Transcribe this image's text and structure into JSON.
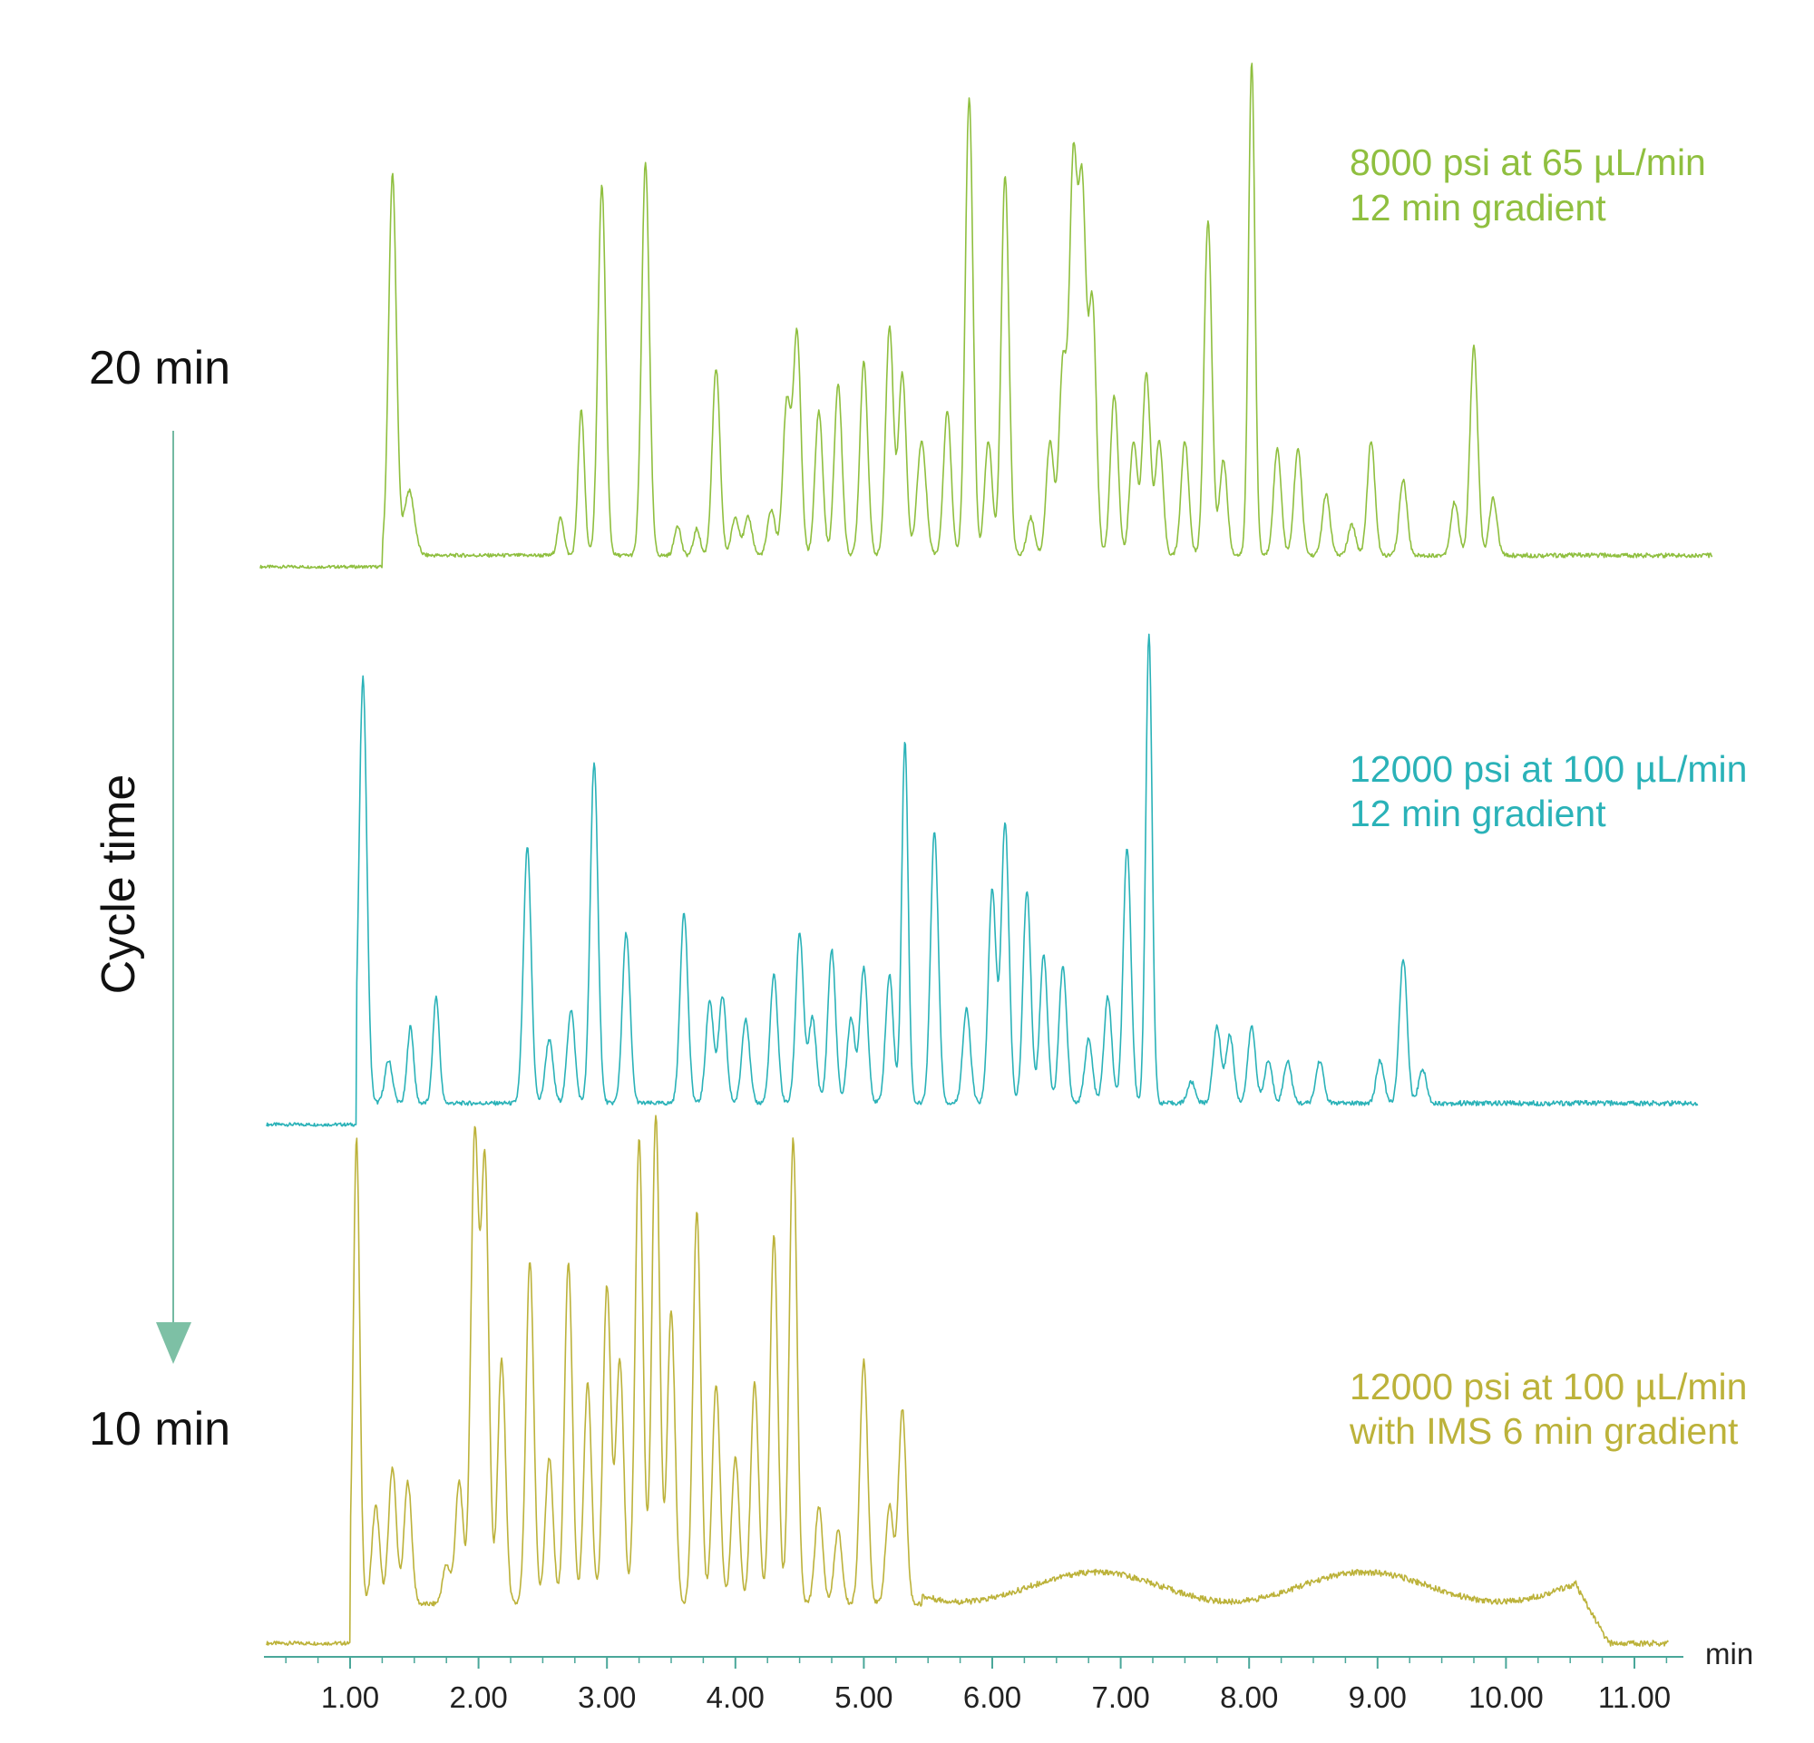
{
  "side_annotations": {
    "top_label": "20 min",
    "bottom_label": "10 min",
    "axis_title": "Cycle time"
  },
  "chart_data": {
    "type": "line",
    "xlabel": "min",
    "ylabel": "",
    "xlim": [
      0.3,
      11.4
    ],
    "x_ticks": [
      "1.00",
      "2.00",
      "3.00",
      "4.00",
      "5.00",
      "6.00",
      "7.00",
      "8.00",
      "9.00",
      "10.00",
      "11.00"
    ],
    "grid": false,
    "traces": [
      {
        "color": "#8fbf3f",
        "label_lines": [
          "8000 psi at 65 µL/min",
          "12 min gradient"
        ],
        "x_range": [
          0.3,
          11.8
        ],
        "onset": 1.25,
        "baseline_after": 0.03,
        "end_peaks": 10.0,
        "peaks": [
          [
            1.33,
            1.0,
            0.03
          ],
          [
            1.46,
            0.17,
            0.04
          ],
          [
            2.64,
            0.1,
            0.025
          ],
          [
            2.8,
            0.38,
            0.025
          ],
          [
            2.96,
            0.97,
            0.03
          ],
          [
            3.3,
            1.03,
            0.03
          ],
          [
            3.55,
            0.08,
            0.025
          ],
          [
            3.7,
            0.07,
            0.025
          ],
          [
            3.85,
            0.49,
            0.03
          ],
          [
            4.0,
            0.1,
            0.03
          ],
          [
            4.1,
            0.1,
            0.03
          ],
          [
            4.28,
            0.12,
            0.03
          ],
          [
            4.4,
            0.4,
            0.03
          ],
          [
            4.48,
            0.58,
            0.03
          ],
          [
            4.65,
            0.38,
            0.03
          ],
          [
            4.8,
            0.45,
            0.03
          ],
          [
            5.0,
            0.51,
            0.03
          ],
          [
            5.2,
            0.6,
            0.03
          ],
          [
            5.3,
            0.48,
            0.03
          ],
          [
            5.45,
            0.3,
            0.035
          ],
          [
            5.65,
            0.38,
            0.03
          ],
          [
            5.82,
            1.2,
            0.03
          ],
          [
            5.97,
            0.3,
            0.03
          ],
          [
            6.1,
            1.0,
            0.03
          ],
          [
            6.3,
            0.1,
            0.03
          ],
          [
            6.45,
            0.3,
            0.03
          ],
          [
            6.55,
            0.5,
            0.03
          ],
          [
            6.63,
            1.0,
            0.03
          ],
          [
            6.7,
            0.93,
            0.03
          ],
          [
            6.78,
            0.66,
            0.03
          ],
          [
            6.95,
            0.42,
            0.03
          ],
          [
            7.1,
            0.3,
            0.03
          ],
          [
            7.2,
            0.48,
            0.03
          ],
          [
            7.3,
            0.3,
            0.03
          ],
          [
            7.5,
            0.3,
            0.03
          ],
          [
            7.68,
            0.88,
            0.03
          ],
          [
            7.8,
            0.25,
            0.03
          ],
          [
            8.02,
            1.3,
            0.025
          ],
          [
            8.22,
            0.28,
            0.03
          ],
          [
            8.38,
            0.28,
            0.03
          ],
          [
            8.6,
            0.16,
            0.03
          ],
          [
            8.8,
            0.08,
            0.03
          ],
          [
            8.95,
            0.3,
            0.03
          ],
          [
            9.2,
            0.2,
            0.03
          ],
          [
            9.6,
            0.14,
            0.03
          ],
          [
            9.75,
            0.55,
            0.03
          ],
          [
            9.9,
            0.15,
            0.03
          ]
        ]
      },
      {
        "color": "#2ab2b8",
        "label_lines": [
          "12000 psi at 100 µL/min",
          "12 min gradient"
        ],
        "x_range": [
          0.35,
          11.8
        ],
        "onset": 1.05,
        "baseline_after": 0.05,
        "end_peaks": 9.5,
        "peaks": [
          [
            1.1,
            1.0,
            0.03
          ],
          [
            1.3,
            0.1,
            0.03
          ],
          [
            1.47,
            0.18,
            0.025
          ],
          [
            1.67,
            0.25,
            0.025
          ],
          [
            2.38,
            0.6,
            0.03
          ],
          [
            2.55,
            0.15,
            0.03
          ],
          [
            2.72,
            0.22,
            0.03
          ],
          [
            2.9,
            0.8,
            0.03
          ],
          [
            3.15,
            0.4,
            0.03
          ],
          [
            3.6,
            0.45,
            0.03
          ],
          [
            3.8,
            0.24,
            0.03
          ],
          [
            3.9,
            0.25,
            0.03
          ],
          [
            4.08,
            0.2,
            0.03
          ],
          [
            4.3,
            0.3,
            0.03
          ],
          [
            4.5,
            0.4,
            0.03
          ],
          [
            4.6,
            0.2,
            0.03
          ],
          [
            4.75,
            0.36,
            0.03
          ],
          [
            4.9,
            0.2,
            0.03
          ],
          [
            5.0,
            0.32,
            0.03
          ],
          [
            5.2,
            0.3,
            0.03
          ],
          [
            5.32,
            0.85,
            0.025
          ],
          [
            5.55,
            0.64,
            0.03
          ],
          [
            5.8,
            0.22,
            0.03
          ],
          [
            6.0,
            0.5,
            0.03
          ],
          [
            6.1,
            0.66,
            0.03
          ],
          [
            6.27,
            0.5,
            0.03
          ],
          [
            6.4,
            0.35,
            0.03
          ],
          [
            6.55,
            0.32,
            0.03
          ],
          [
            6.75,
            0.15,
            0.03
          ],
          [
            6.9,
            0.25,
            0.03
          ],
          [
            7.05,
            0.6,
            0.03
          ],
          [
            7.22,
            1.1,
            0.025
          ],
          [
            7.55,
            0.05,
            0.03
          ],
          [
            7.75,
            0.18,
            0.03
          ],
          [
            7.85,
            0.16,
            0.03
          ],
          [
            8.02,
            0.18,
            0.03
          ],
          [
            8.15,
            0.1,
            0.03
          ],
          [
            8.3,
            0.1,
            0.03
          ],
          [
            8.55,
            0.1,
            0.03
          ],
          [
            9.02,
            0.1,
            0.03
          ],
          [
            9.2,
            0.34,
            0.03
          ],
          [
            9.35,
            0.08,
            0.03
          ]
        ]
      },
      {
        "color": "#bcb23a",
        "label_lines": [
          "12000 psi at 100 µL/min",
          "with IMS 6 min gradient"
        ],
        "x_range": [
          0.35,
          11.3
        ],
        "onset": 1.0,
        "baseline_after": 0.08,
        "end_peaks": 5.45,
        "tail_level": 0.1,
        "tail_end": 10.55,
        "tail_base": 0.0,
        "peaks": [
          [
            1.05,
            0.95,
            0.025
          ],
          [
            1.2,
            0.2,
            0.03
          ],
          [
            1.33,
            0.28,
            0.03
          ],
          [
            1.45,
            0.25,
            0.03
          ],
          [
            1.75,
            0.08,
            0.03
          ],
          [
            1.85,
            0.25,
            0.03
          ],
          [
            1.97,
            0.95,
            0.03
          ],
          [
            2.05,
            0.9,
            0.03
          ],
          [
            2.18,
            0.5,
            0.03
          ],
          [
            2.4,
            0.7,
            0.03
          ],
          [
            2.55,
            0.3,
            0.03
          ],
          [
            2.7,
            0.7,
            0.03
          ],
          [
            2.85,
            0.45,
            0.03
          ],
          [
            3.0,
            0.65,
            0.03
          ],
          [
            3.1,
            0.5,
            0.03
          ],
          [
            3.25,
            0.95,
            0.03
          ],
          [
            3.38,
            1.0,
            0.03
          ],
          [
            3.5,
            0.6,
            0.03
          ],
          [
            3.7,
            0.8,
            0.03
          ],
          [
            3.85,
            0.45,
            0.03
          ],
          [
            4.0,
            0.3,
            0.03
          ],
          [
            4.15,
            0.45,
            0.03
          ],
          [
            4.3,
            0.75,
            0.03
          ],
          [
            4.45,
            0.95,
            0.03
          ],
          [
            4.65,
            0.2,
            0.03
          ],
          [
            4.8,
            0.15,
            0.03
          ],
          [
            5.0,
            0.5,
            0.03
          ],
          [
            5.2,
            0.2,
            0.03
          ],
          [
            5.3,
            0.4,
            0.03
          ]
        ]
      }
    ]
  }
}
